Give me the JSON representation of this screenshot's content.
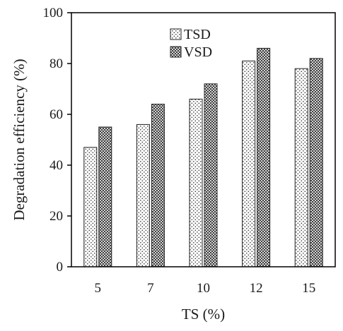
{
  "chart_data": {
    "type": "bar",
    "title": "",
    "xlabel": "TS (%)",
    "ylabel": "Degradation efficiency (%)",
    "categories": [
      "5",
      "7",
      "10",
      "12",
      "15"
    ],
    "series": [
      {
        "name": "TSD",
        "values": [
          47,
          56,
          66,
          81,
          78
        ],
        "pattern": "dots"
      },
      {
        "name": "VSD",
        "values": [
          55,
          64,
          72,
          86,
          82
        ],
        "pattern": "crosshatch"
      }
    ],
    "ylim": [
      0,
      100
    ],
    "yticks": [
      0,
      20,
      40,
      60,
      80,
      100
    ],
    "grid": false,
    "legend_position": "top-center"
  }
}
